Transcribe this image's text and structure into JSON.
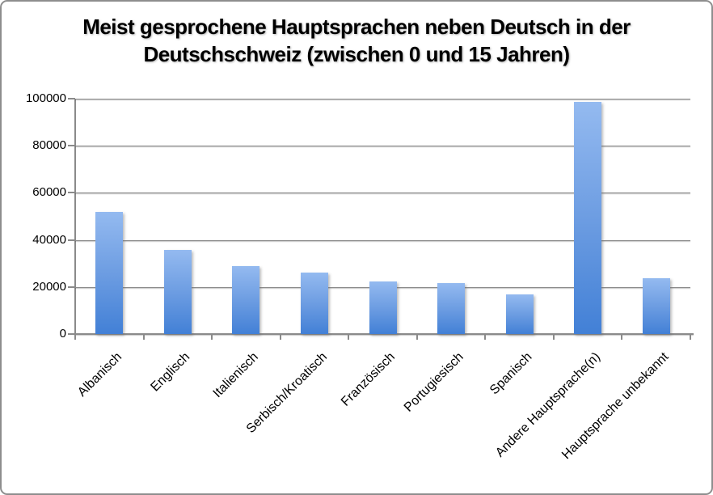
{
  "frame": {
    "background": "#ffffff",
    "border_color": "#8e8e8e"
  },
  "chart_data": {
    "type": "bar",
    "title": "Meist gesprochene Hauptsprachen neben Deutsch in der Deutschschweiz (zwischen 0 und 15 Jahren)",
    "title_lines": [
      "Meist gesprochene Hauptsprachen neben Deutsch in der",
      "Deutschschweiz (zwischen 0 und 15 Jahren)"
    ],
    "categories": [
      "Albanisch",
      "Englisch",
      "Italienisch",
      "Serbisch/Kroatisch",
      "Französisch",
      "Portugiesisch",
      "Spanisch",
      "Andere Hauptsprache(n)",
      "Hauptsprache unbekannt"
    ],
    "values": [
      52000,
      35800,
      28900,
      26000,
      22200,
      21500,
      16800,
      98500,
      23800
    ],
    "xlabel": "",
    "ylabel": "",
    "ylim": [
      0,
      100000
    ],
    "yticks": [
      0,
      20000,
      40000,
      60000,
      80000,
      100000
    ],
    "ytick_labels": [
      "0",
      "20000",
      "40000",
      "60000",
      "80000",
      "100000"
    ],
    "grid": true,
    "legend": false,
    "x_label_rotation_deg": -45,
    "bar_color_top": "#94baf0",
    "bar_color_mid": "#6d9de2",
    "bar_color_bottom": "#4280d6",
    "axis_color": "#8a8a8a",
    "gridline_color": "#8a8a8a",
    "title_color": "#000000"
  }
}
